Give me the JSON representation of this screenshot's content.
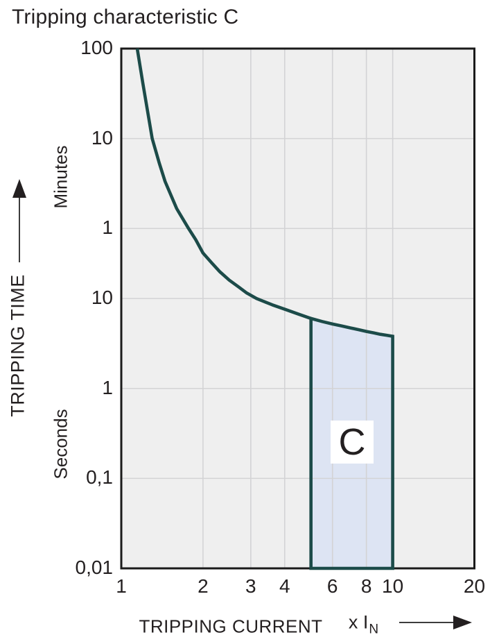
{
  "title": "Tripping characteristic C",
  "colors": {
    "curve": "#1c4b49",
    "region_fill": "#dde4f3",
    "plot_bg": "#efefef",
    "grid": "#d3d3d5",
    "border": "#1a1a1a",
    "text": "#231f20",
    "arrow_line": "#3c3c3c",
    "label_box_bg": "#ffffff"
  },
  "icons": {
    "y_axis_arrow": "up-arrow",
    "x_axis_arrow": "right-arrow"
  },
  "y_axis": {
    "title": "TRIPPING TIME",
    "upper_unit": "Minutes",
    "lower_unit": "Seconds",
    "scale": "log",
    "tick_labels": [
      {
        "label": "100",
        "seconds": 6000
      },
      {
        "label": "10",
        "seconds": 600
      },
      {
        "label": "1",
        "seconds": 60
      },
      {
        "label": "10",
        "seconds": 10
      },
      {
        "label": "1",
        "seconds": 1
      },
      {
        "label": "0,1",
        "seconds": 0.1
      },
      {
        "label": "0,01",
        "seconds": 0.01
      }
    ],
    "grid_values_seconds": [
      600,
      60,
      10,
      1,
      0.1
    ]
  },
  "x_axis": {
    "title": "TRIPPING CURRENT",
    "unit_prefix": "x I",
    "unit_sub": "N",
    "scale": "log",
    "tick_labels": [
      {
        "label": "1",
        "value": 1
      },
      {
        "label": "2",
        "value": 2
      },
      {
        "label": "3",
        "value": 3
      },
      {
        "label": "4",
        "value": 4
      },
      {
        "label": "6",
        "value": 6
      },
      {
        "label": "8",
        "value": 8
      },
      {
        "label": "10",
        "value": 10
      },
      {
        "label": "20",
        "value": 20
      }
    ],
    "grid_values": [
      2,
      3,
      4,
      6,
      8,
      10
    ]
  },
  "chart_data": {
    "type": "line",
    "title": "Tripping characteristic C",
    "xlabel": "TRIPPING CURRENT (x IN)",
    "ylabel": "TRIPPING TIME (minutes / seconds)",
    "x_scale": "log",
    "y_scale": "log",
    "xlim": [
      1,
      20
    ],
    "ylim_seconds": [
      0.01,
      6000
    ],
    "grid": true,
    "legend": "none",
    "series": [
      {
        "name": "thermal-trip-curve",
        "points_x_in": [
          1.145,
          1.2,
          1.25,
          1.3,
          1.38,
          1.45,
          1.6,
          1.77,
          1.88,
          2.0,
          2.15,
          2.3,
          2.5,
          2.7,
          2.9,
          3.15,
          3.4,
          3.6,
          4.0,
          4.5,
          5.0
        ],
        "points_seconds": [
          6000,
          2500,
          1200,
          600,
          320,
          200,
          100,
          60,
          45,
          32,
          25,
          20,
          16,
          13.5,
          11.5,
          10,
          9.1,
          8.5,
          7.6,
          6.7,
          6.0
        ]
      }
    ],
    "instantaneous_region": {
      "label": "C",
      "x_range_in": [
        5,
        10
      ],
      "top_boundary_x": [
        5,
        5.5,
        6,
        6.5,
        7,
        7.5,
        8,
        8.5,
        9,
        9.5,
        10
      ],
      "top_boundary_seconds": [
        6.0,
        5.55,
        5.2,
        4.95,
        4.7,
        4.5,
        4.3,
        4.15,
        4.0,
        3.9,
        3.8
      ],
      "bottom_seconds": 0.01
    }
  }
}
